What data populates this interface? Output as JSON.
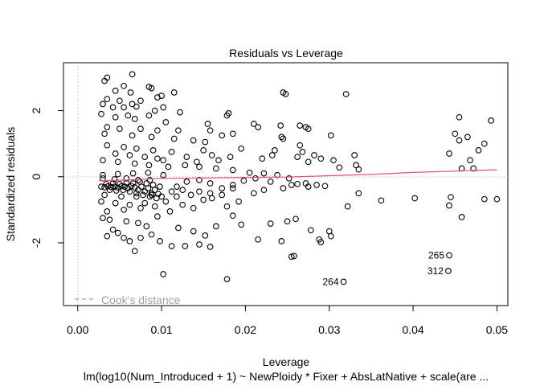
{
  "chart_data": {
    "type": "scatter",
    "title": "Residuals vs Leverage",
    "xlabel": "Leverage",
    "ylabel": "Standardized residuals",
    "subtitle": "lm(log10(Num_Introduced + 1) ~ NewPloidy * Fixer + AbsLatNative + scale(are ...",
    "xlim": [
      -0.0017,
      0.0513
    ],
    "ylim": [
      -3.9,
      3.45
    ],
    "x_ticks": [
      0.0,
      0.01,
      0.02,
      0.03,
      0.04,
      0.05
    ],
    "x_tick_labels": [
      "0.00",
      "0.01",
      "0.02",
      "0.03",
      "0.04",
      "0.05"
    ],
    "y_ticks": [
      -2,
      0,
      2
    ],
    "y_tick_labels": [
      "-2",
      "0",
      "2"
    ],
    "legend": {
      "label": "Cook's distance",
      "placement": "bottom-left",
      "color": "#a0a0a0"
    },
    "smooth_color": "#df536b",
    "smooth_line": [
      [
        0.0025,
        -0.12
      ],
      [
        0.006,
        -0.1
      ],
      [
        0.01,
        -0.05
      ],
      [
        0.015,
        -0.04
      ],
      [
        0.02,
        -0.02
      ],
      [
        0.025,
        -0.01
      ],
      [
        0.03,
        0.03
      ],
      [
        0.035,
        0.07
      ],
      [
        0.04,
        0.13
      ],
      [
        0.045,
        0.17
      ],
      [
        0.05,
        0.21
      ]
    ],
    "labeled_points": [
      {
        "label": "265",
        "x": 0.0443,
        "y": -2.38
      },
      {
        "label": "312",
        "x": 0.0442,
        "y": -2.85
      },
      {
        "label": "264",
        "x": 0.0317,
        "y": -3.18
      }
    ],
    "points": [
      [
        0.0065,
        3.1
      ],
      [
        0.0035,
        3.0
      ],
      [
        0.0032,
        2.9
      ],
      [
        0.0055,
        2.75
      ],
      [
        0.0085,
        2.72
      ],
      [
        0.0088,
        2.68
      ],
      [
        0.0045,
        2.6
      ],
      [
        0.0063,
        2.55
      ],
      [
        0.0115,
        2.55
      ],
      [
        0.0245,
        2.55
      ],
      [
        0.0248,
        2.5
      ],
      [
        0.032,
        2.5
      ],
      [
        0.01,
        2.45
      ],
      [
        0.0095,
        2.4
      ],
      [
        0.0035,
        2.35
      ],
      [
        0.0075,
        2.3
      ],
      [
        0.005,
        2.3
      ],
      [
        0.003,
        2.2
      ],
      [
        0.0065,
        2.2
      ],
      [
        0.0042,
        2.1
      ],
      [
        0.0055,
        2.1
      ],
      [
        0.007,
        2.12
      ],
      [
        0.0102,
        2.1
      ],
      [
        0.0092,
        2.0
      ],
      [
        0.0122,
        1.95
      ],
      [
        0.018,
        1.92
      ],
      [
        0.0178,
        1.85
      ],
      [
        0.0028,
        1.9
      ],
      [
        0.006,
        1.85
      ],
      [
        0.0085,
        1.85
      ],
      [
        0.0045,
        1.8
      ],
      [
        0.0068,
        1.75
      ],
      [
        0.0105,
        1.65
      ],
      [
        0.0155,
        1.6
      ],
      [
        0.021,
        1.6
      ],
      [
        0.0215,
        1.5
      ],
      [
        0.0242,
        1.55
      ],
      [
        0.0265,
        1.55
      ],
      [
        0.0272,
        1.5
      ],
      [
        0.0275,
        1.45
      ],
      [
        0.0455,
        1.8
      ],
      [
        0.045,
        1.3
      ],
      [
        0.0465,
        1.2
      ],
      [
        0.0455,
        1.1
      ],
      [
        0.0485,
        1.0
      ],
      [
        0.0493,
        1.7
      ],
      [
        0.0035,
        1.5
      ],
      [
        0.005,
        1.45
      ],
      [
        0.0075,
        1.45
      ],
      [
        0.0095,
        1.4
      ],
      [
        0.012,
        1.4
      ],
      [
        0.0158,
        1.4
      ],
      [
        0.0172,
        1.25
      ],
      [
        0.0185,
        1.3
      ],
      [
        0.0243,
        1.2
      ],
      [
        0.0032,
        1.3
      ],
      [
        0.0065,
        1.25
      ],
      [
        0.0088,
        1.2
      ],
      [
        0.0115,
        1.15
      ],
      [
        0.0138,
        1.1
      ],
      [
        0.0152,
        1.05
      ],
      [
        0.0245,
        1.15
      ],
      [
        0.0302,
        1.25
      ],
      [
        0.0265,
        0.95
      ],
      [
        0.0268,
        0.75
      ],
      [
        0.0282,
        0.65
      ],
      [
        0.029,
        0.55
      ],
      [
        0.0275,
        0.45
      ],
      [
        0.0262,
        0.6
      ],
      [
        0.0232,
        0.65
      ],
      [
        0.0235,
        0.8
      ],
      [
        0.022,
        0.55
      ],
      [
        0.0195,
        0.85
      ],
      [
        0.0182,
        0.6
      ],
      [
        0.0168,
        0.5
      ],
      [
        0.016,
        0.65
      ],
      [
        0.015,
        0.8
      ],
      [
        0.0142,
        0.45
      ],
      [
        0.013,
        0.6
      ],
      [
        0.0112,
        0.75
      ],
      [
        0.0102,
        0.5
      ],
      [
        0.0305,
        0.5
      ],
      [
        0.033,
        0.65
      ],
      [
        0.0332,
        0.35
      ],
      [
        0.0335,
        0.22
      ],
      [
        0.0312,
        0.28
      ],
      [
        0.0443,
        0.7
      ],
      [
        0.0458,
        0.25
      ],
      [
        0.0472,
        0.25
      ],
      [
        0.0468,
        0.5
      ],
      [
        0.0478,
        0.8
      ],
      [
        0.0035,
        0.95
      ],
      [
        0.0055,
        0.9
      ],
      [
        0.007,
        0.85
      ],
      [
        0.009,
        0.8
      ],
      [
        0.0045,
        0.7
      ],
      [
        0.0062,
        0.65
      ],
      [
        0.008,
        0.6
      ],
      [
        0.0095,
        0.55
      ],
      [
        0.003,
        0.5
      ],
      [
        0.0048,
        0.45
      ],
      [
        0.0068,
        0.4
      ],
      [
        0.0085,
        0.35
      ],
      [
        0.0108,
        0.3
      ],
      [
        0.0128,
        0.35
      ],
      [
        0.0145,
        0.3
      ],
      [
        0.0165,
        0.25
      ],
      [
        0.0185,
        0.2
      ],
      [
        0.0205,
        0.12
      ],
      [
        0.0222,
        0.1
      ],
      [
        0.0238,
        0.05
      ],
      [
        0.0252,
        -0.05
      ],
      [
        0.0272,
        -0.2
      ],
      [
        0.0285,
        -0.25
      ],
      [
        0.0295,
        -0.28
      ],
      [
        0.0262,
        -0.22
      ],
      [
        0.0275,
        -0.3
      ],
      [
        0.0255,
        -0.25
      ],
      [
        0.0245,
        -0.35
      ],
      [
        0.023,
        -0.15
      ],
      [
        0.0212,
        -0.05
      ],
      [
        0.0198,
        -0.12
      ],
      [
        0.0185,
        -0.25
      ],
      [
        0.0172,
        -0.35
      ],
      [
        0.0158,
        -0.2
      ],
      [
        0.0145,
        -0.1
      ],
      [
        0.013,
        -0.15
      ],
      [
        0.0118,
        -0.3
      ],
      [
        0.0335,
        -0.5
      ],
      [
        0.0362,
        -0.72
      ],
      [
        0.0402,
        -0.65
      ],
      [
        0.0445,
        -0.62
      ],
      [
        0.0443,
        -0.87
      ],
      [
        0.0458,
        -1.22
      ],
      [
        0.0485,
        -0.68
      ],
      [
        0.05,
        -0.68
      ],
      [
        0.0322,
        -0.9
      ],
      [
        0.03,
        -1.65
      ],
      [
        0.0302,
        -1.8
      ],
      [
        0.0278,
        -1.62
      ],
      [
        0.026,
        -1.28
      ],
      [
        0.025,
        -1.35
      ],
      [
        0.0243,
        -1.95
      ],
      [
        0.0258,
        -2.4
      ],
      [
        0.0255,
        -2.42
      ],
      [
        0.0288,
        -1.9
      ],
      [
        0.029,
        -1.98
      ],
      [
        0.023,
        -1.42
      ],
      [
        0.0215,
        -1.9
      ],
      [
        0.0195,
        -1.45
      ],
      [
        0.0185,
        -1.18
      ],
      [
        0.0178,
        -3.1
      ],
      [
        0.0178,
        -0.9
      ],
      [
        0.0165,
        -1.5
      ],
      [
        0.0158,
        -2.12
      ],
      [
        0.0152,
        -1.78
      ],
      [
        0.0145,
        -2.05
      ],
      [
        0.0138,
        -1.65
      ],
      [
        0.0128,
        -2.1
      ],
      [
        0.012,
        -1.55
      ],
      [
        0.0112,
        -2.1
      ],
      [
        0.0102,
        -2.95
      ],
      [
        0.0098,
        -1.95
      ],
      [
        0.0088,
        -1.75
      ],
      [
        0.0075,
        -1.85
      ],
      [
        0.0068,
        -2.25
      ],
      [
        0.0062,
        -1.95
      ],
      [
        0.0055,
        -1.85
      ],
      [
        0.0048,
        -1.7
      ],
      [
        0.0042,
        -1.6
      ],
      [
        0.0035,
        -1.8
      ],
      [
        0.003,
        -1.25
      ],
      [
        0.0038,
        -1.3
      ],
      [
        0.0058,
        -1.35
      ],
      [
        0.0072,
        -1.4
      ],
      [
        0.0082,
        -1.5
      ],
      [
        0.0095,
        -1.2
      ],
      [
        0.011,
        -1.05
      ],
      [
        0.0125,
        -0.85
      ],
      [
        0.0138,
        -0.95
      ],
      [
        0.015,
        -0.7
      ],
      [
        0.016,
        -0.65
      ],
      [
        0.0172,
        -0.55
      ],
      [
        0.0192,
        -0.75
      ],
      [
        0.021,
        -0.5
      ],
      [
        0.0222,
        -0.4
      ],
      [
        0.0185,
        -0.35
      ],
      [
        0.0035,
        -1.05
      ],
      [
        0.0055,
        -1.0
      ],
      [
        0.0075,
        -0.95
      ],
      [
        0.0092,
        -0.9
      ],
      [
        0.0105,
        -0.75
      ],
      [
        0.0118,
        -0.6
      ],
      [
        0.0135,
        -0.55
      ],
      [
        0.0145,
        -0.45
      ],
      [
        0.0158,
        -0.5
      ],
      [
        0.0028,
        -0.75
      ],
      [
        0.0045,
        -0.8
      ],
      [
        0.0062,
        -0.85
      ],
      [
        0.008,
        -0.8
      ],
      [
        0.01,
        -0.6
      ],
      [
        0.0112,
        -0.45
      ],
      [
        0.0125,
        -0.4
      ],
      [
        0.0032,
        -0.55
      ],
      [
        0.0052,
        -0.6
      ],
      [
        0.007,
        -0.6
      ],
      [
        0.0088,
        -0.55
      ]
    ],
    "cluster_points": [
      [
        0.0028,
        -0.3
      ],
      [
        0.0032,
        -0.32
      ],
      [
        0.0036,
        -0.29
      ],
      [
        0.004,
        -0.31
      ],
      [
        0.0044,
        -0.3
      ],
      [
        0.0048,
        -0.33
      ],
      [
        0.0052,
        -0.29
      ],
      [
        0.0056,
        -0.3
      ],
      [
        0.006,
        -0.35
      ],
      [
        0.0064,
        -0.28
      ],
      [
        0.0068,
        -0.32
      ],
      [
        0.0072,
        -0.4
      ],
      [
        0.0076,
        -0.3
      ],
      [
        0.008,
        -0.45
      ],
      [
        0.0084,
        -0.35
      ],
      [
        0.0088,
        -0.5
      ],
      [
        0.0092,
        -0.4
      ],
      [
        0.0096,
        -0.52
      ],
      [
        0.0034,
        -0.22
      ],
      [
        0.0042,
        -0.2
      ],
      [
        0.005,
        -0.22
      ],
      [
        0.0058,
        -0.18
      ],
      [
        0.0066,
        -0.2
      ],
      [
        0.0074,
        -0.15
      ],
      [
        0.0082,
        -0.2
      ],
      [
        0.009,
        -0.25
      ],
      [
        0.0098,
        -0.3
      ],
      [
        0.0038,
        -0.4
      ],
      [
        0.0046,
        -0.42
      ],
      [
        0.0054,
        -0.4
      ],
      [
        0.0062,
        -0.45
      ],
      [
        0.007,
        -0.5
      ],
      [
        0.0078,
        -0.55
      ],
      [
        0.0086,
        -0.6
      ],
      [
        0.0094,
        -0.65
      ],
      [
        0.003,
        -0.05
      ],
      [
        0.0044,
        -0.08
      ],
      [
        0.0058,
        -0.05
      ],
      [
        0.0072,
        -0.1
      ],
      [
        0.0086,
        -0.1
      ],
      [
        0.003,
        0.05
      ],
      [
        0.0048,
        0.08
      ],
      [
        0.0066,
        0.1
      ],
      [
        0.0084,
        0.12
      ],
      [
        0.0102,
        0.05
      ]
    ]
  }
}
